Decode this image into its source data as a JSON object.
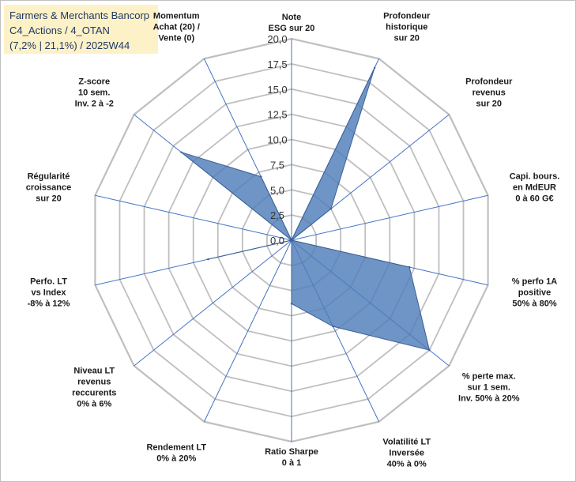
{
  "title_box": {
    "line1": "Farmers & Merchants Bancorp",
    "line2": "C4_Actions / 4_OTAN",
    "line3": "(7,2% | 21,1%) / 2025W44"
  },
  "colors": {
    "fill": "#4f7cba",
    "stroke": "#3b5f94",
    "grid": "#bfbfbf",
    "spoke": "#4472c4",
    "title_bg": "#fdf1c8"
  },
  "chart_data": {
    "type": "radar",
    "range": [
      0,
      20
    ],
    "tick_labels": [
      "0,0",
      "2,5",
      "5,0",
      "7,5",
      "10,0",
      "12,5",
      "15,0",
      "17,5",
      "20,0"
    ],
    "axes": [
      {
        "lines": [
          "Note",
          "ESG sur 20"
        ]
      },
      {
        "lines": [
          "Profondeur",
          "historique",
          "sur 20"
        ]
      },
      {
        "lines": [
          "Profondeur",
          "revenus",
          "sur 20"
        ]
      },
      {
        "lines": [
          "Capi. bours.",
          "en MdEUR",
          "0 à 60 G€"
        ]
      },
      {
        "lines": [
          "% perfo 1A",
          "positive",
          "50% à 80%"
        ]
      },
      {
        "lines": [
          "% perte max.",
          "sur 1 sem.",
          "Inv. 50% à 20%"
        ]
      },
      {
        "lines": [
          "Volatilité LT",
          "Inversée",
          "40% à 0%"
        ]
      },
      {
        "lines": [
          "Ratio Sharpe",
          "0 à 1"
        ]
      },
      {
        "lines": [
          "Rendement LT",
          "0% à 20%"
        ]
      },
      {
        "lines": [
          "Niveau LT",
          "revenus",
          "reccurents",
          "0% à 6%"
        ]
      },
      {
        "lines": [
          "Perfo. LT",
          "vs Index",
          "-8% à 12%"
        ]
      },
      {
        "lines": [
          "Régularité",
          "croissance",
          "sur 20"
        ]
      },
      {
        "lines": [
          "Z-score",
          "10 sem.",
          "Inv. 2 à -2"
        ]
      },
      {
        "lines": [
          "Momentum",
          "Achat (20) /",
          "Vente (0)"
        ]
      }
    ],
    "series": [
      {
        "name": "Farmers & Merchants Bancorp",
        "values": [
          0.0,
          19.0,
          5.0,
          0.0,
          12.0,
          17.5,
          9.5,
          6.3,
          0.0,
          0.0,
          8.5,
          0.0,
          14.0,
          7.0
        ]
      }
    ]
  }
}
